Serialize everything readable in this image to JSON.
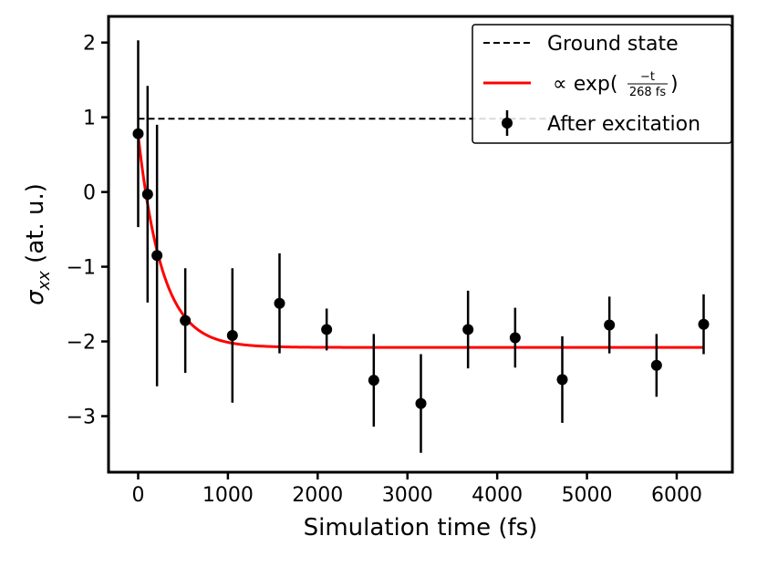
{
  "chart_data": {
    "type": "scatter",
    "title": "",
    "xlabel": "Simulation time (fs)",
    "ylabel_symbol": "σ",
    "ylabel_subscript": "xx",
    "ylabel_unit": " (at. u.)",
    "xlim": [
      -330,
      6620
    ],
    "ylim": [
      -3.75,
      2.35
    ],
    "x_ticks": [
      0,
      1000,
      2000,
      3000,
      4000,
      5000,
      6000
    ],
    "x_tick_labels": [
      "0",
      "1000",
      "2000",
      "3000",
      "4000",
      "5000",
      "6000"
    ],
    "y_ticks": [
      2,
      1,
      0,
      -1,
      -2,
      -3
    ],
    "y_tick_labels": [
      "2",
      "1",
      "0",
      "−1",
      "−2",
      "−3"
    ],
    "grid": false,
    "legend_position": "top-right",
    "series": [
      {
        "name": "Ground state",
        "kind": "dashed-line",
        "color": "#000000",
        "x": [
          0,
          4690
        ],
        "y": [
          0.98,
          0.98
        ]
      },
      {
        "name": "∝ exp(−t / 268 fs)",
        "kind": "fit-line",
        "color": "#ff0000",
        "legend_prefix": "∝ exp(",
        "legend_numerator": "−t",
        "legend_denominator": "268 fs",
        "legend_suffix": ")",
        "tau_fs": 268,
        "asymptote": -2.08,
        "initial": 0.76,
        "x_range": [
          0,
          6310
        ]
      },
      {
        "name": "After excitation",
        "kind": "errorbar",
        "color": "#000000",
        "x": [
          0,
          105,
          210,
          525,
          1050,
          1575,
          2100,
          2625,
          3150,
          3675,
          4200,
          4725,
          5250,
          5775,
          6300
        ],
        "y": [
          0.78,
          -0.03,
          -0.85,
          -1.72,
          -1.92,
          -1.49,
          -1.84,
          -2.52,
          -2.83,
          -1.84,
          -1.95,
          -2.51,
          -1.78,
          -2.32,
          -1.77
        ],
        "err": [
          1.25,
          1.45,
          1.75,
          0.7,
          0.9,
          0.67,
          0.28,
          0.62,
          0.66,
          0.52,
          0.4,
          0.58,
          0.38,
          0.42,
          0.4
        ]
      }
    ]
  }
}
